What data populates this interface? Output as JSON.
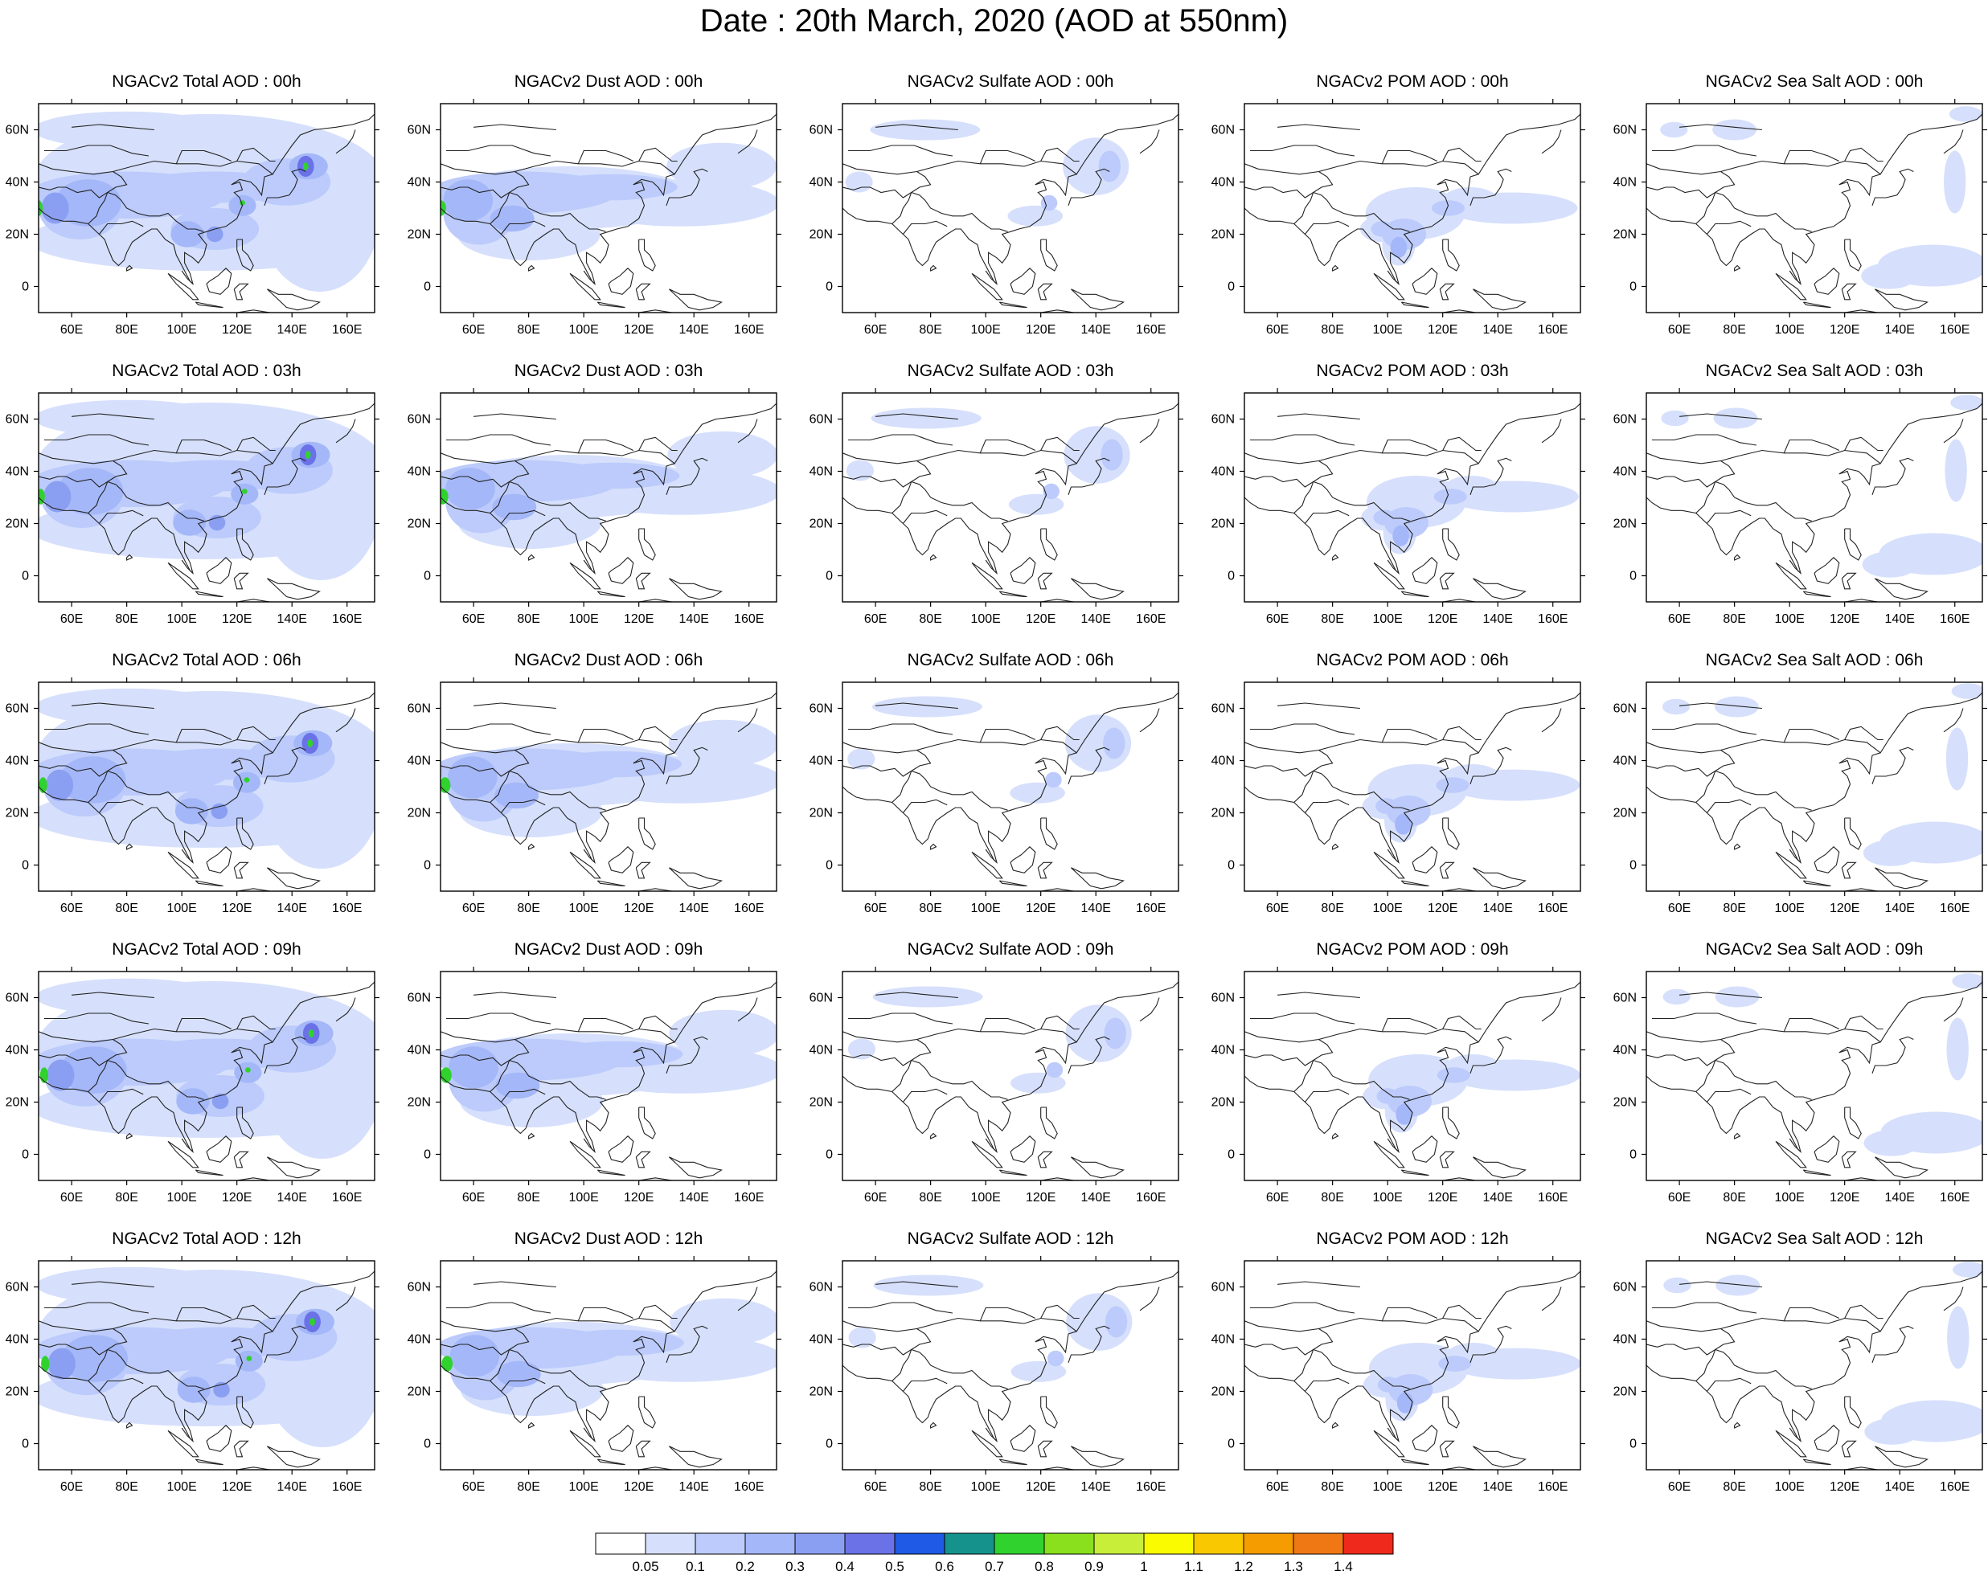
{
  "title": "Date : 20th March, 2020 (AOD at 550nm)",
  "panels": [
    {
      "title": "NGACv2 Total AOD : 00h",
      "field": "total",
      "hour": "00h"
    },
    {
      "title": "NGACv2 Dust AOD : 00h",
      "field": "dust",
      "hour": "00h"
    },
    {
      "title": "NGACv2 Sulfate AOD : 00h",
      "field": "sulfate",
      "hour": "00h"
    },
    {
      "title": "NGACv2 POM AOD : 00h",
      "field": "pom",
      "hour": "00h"
    },
    {
      "title": "NGACv2 Sea Salt AOD : 00h",
      "field": "seasalt",
      "hour": "00h"
    },
    {
      "title": "NGACv2 Total AOD : 03h",
      "field": "total",
      "hour": "03h"
    },
    {
      "title": "NGACv2 Dust AOD : 03h",
      "field": "dust",
      "hour": "03h"
    },
    {
      "title": "NGACv2 Sulfate AOD : 03h",
      "field": "sulfate",
      "hour": "03h"
    },
    {
      "title": "NGACv2 POM AOD : 03h",
      "field": "pom",
      "hour": "03h"
    },
    {
      "title": "NGACv2 Sea Salt AOD : 03h",
      "field": "seasalt",
      "hour": "03h"
    },
    {
      "title": "NGACv2 Total AOD : 06h",
      "field": "total",
      "hour": "06h"
    },
    {
      "title": "NGACv2 Dust AOD : 06h",
      "field": "dust",
      "hour": "06h"
    },
    {
      "title": "NGACv2 Sulfate AOD : 06h",
      "field": "sulfate",
      "hour": "06h"
    },
    {
      "title": "NGACv2 POM AOD : 06h",
      "field": "pom",
      "hour": "06h"
    },
    {
      "title": "NGACv2 Sea Salt AOD : 06h",
      "field": "seasalt",
      "hour": "06h"
    },
    {
      "title": "NGACv2 Total AOD : 09h",
      "field": "total",
      "hour": "09h"
    },
    {
      "title": "NGACv2 Dust AOD : 09h",
      "field": "dust",
      "hour": "09h"
    },
    {
      "title": "NGACv2 Sulfate AOD : 09h",
      "field": "sulfate",
      "hour": "09h"
    },
    {
      "title": "NGACv2 POM AOD : 09h",
      "field": "pom",
      "hour": "09h"
    },
    {
      "title": "NGACv2 Sea Salt  AOD : 09h",
      "field": "seasalt",
      "hour": "09h"
    },
    {
      "title": "NGACv2 Total AOD  : 12h",
      "field": "total",
      "hour": "12h"
    },
    {
      "title": "NGACv2 Dust AOD : 12h",
      "field": "dust",
      "hour": "12h"
    },
    {
      "title": "NGACv2 Sulfate AOD : 12h",
      "field": "sulfate",
      "hour": "12h"
    },
    {
      "title": "NGACv2 POM  AOD : 12h",
      "field": "pom",
      "hour": "12h"
    },
    {
      "title": "NGACv2 Sea Salt  AOD : 12h",
      "field": "seasalt",
      "hour": "12h"
    }
  ],
  "map": {
    "lon_range": [
      48,
      170
    ],
    "lat_range": [
      -10,
      70
    ],
    "lon_ticks": [
      "60E",
      "80E",
      "100E",
      "120E",
      "140E",
      "160E"
    ],
    "lat_ticks": [
      "0",
      "20N",
      "40N",
      "60N"
    ]
  },
  "colorbar": {
    "labels": [
      "0.05",
      "0.1",
      "0.2",
      "0.3",
      "0.4",
      "0.5",
      "0.6",
      "0.7",
      "0.8",
      "0.9",
      "1",
      "1.1",
      "1.2",
      "1.3",
      "1.4"
    ],
    "colors": [
      "#ffffff",
      "#d6e0fc",
      "#bccbfb",
      "#a4b7f8",
      "#8b9ff2",
      "#6b72e8",
      "#1e5ae6",
      "#15928c",
      "#30d22e",
      "#8ae01c",
      "#c8ee3a",
      "#fbfb00",
      "#f9c800",
      "#f59c00",
      "#f07814",
      "#ef2a1c"
    ]
  },
  "colors": {
    "coast": "#222222",
    "frame": "#000000"
  }
}
